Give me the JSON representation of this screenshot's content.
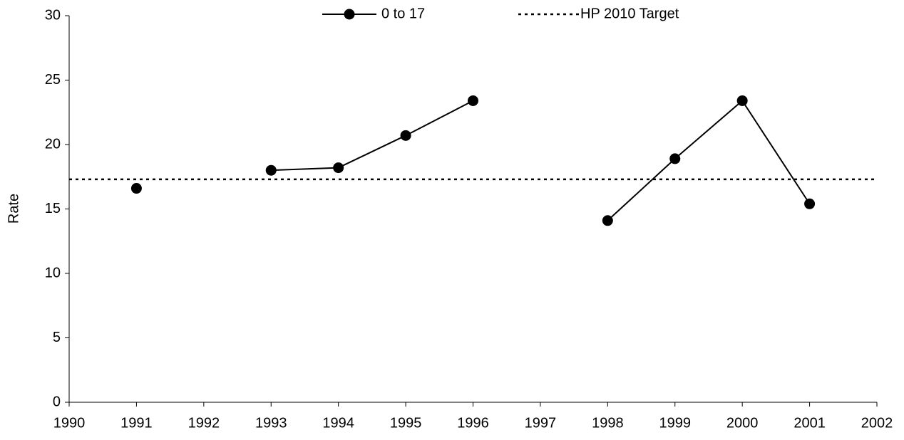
{
  "chart_data": {
    "type": "line",
    "x": [
      1991,
      1992,
      1993,
      1994,
      1995,
      1996,
      1997,
      1998,
      1999,
      2000,
      2001
    ],
    "series": [
      {
        "name": "0 to 17",
        "color": "#000000",
        "values": [
          16.6,
          null,
          18.0,
          18.2,
          20.7,
          23.4,
          null,
          14.1,
          18.9,
          23.4,
          15.4
        ]
      }
    ],
    "target": {
      "name": "HP 2010 Target",
      "value": 17.3,
      "color": "#000000"
    },
    "ylabel": "Rate",
    "xlim": [
      1990,
      2002
    ],
    "xticks": [
      1990,
      1991,
      1992,
      1993,
      1994,
      1995,
      1996,
      1997,
      1998,
      1999,
      2000,
      2001,
      2002
    ],
    "ylim": [
      0,
      30
    ],
    "yticks": [
      0,
      5,
      10,
      15,
      20,
      25,
      30
    ],
    "grid": false,
    "legend": "top"
  }
}
